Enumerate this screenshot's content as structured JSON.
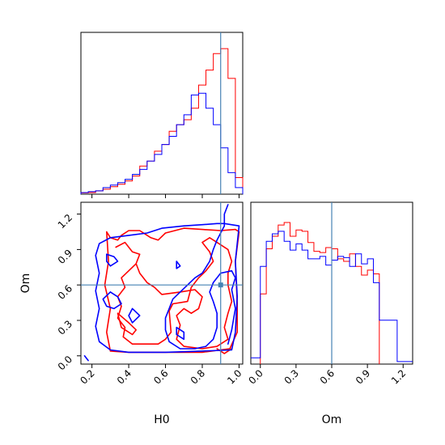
{
  "chart_data": {
    "type": "corner",
    "parameters": [
      "H0",
      "Om"
    ],
    "colors": {
      "series_a": "#ff0000",
      "series_b": "#0000ff",
      "truth": "#4682b4"
    },
    "truth": {
      "H0": 0.9,
      "Om": 0.6
    },
    "panels": [
      {
        "id": "hist-H0",
        "type": "step-histogram",
        "x": "H0",
        "xlim": [
          0.14,
          1.02
        ],
        "bin_edges": [
          0.14,
          0.18,
          0.22,
          0.26,
          0.3,
          0.34,
          0.38,
          0.42,
          0.46,
          0.5,
          0.54,
          0.58,
          0.62,
          0.66,
          0.7,
          0.74,
          0.78,
          0.82,
          0.86,
          0.9,
          0.94,
          0.98,
          1.02
        ],
        "series": [
          {
            "color": "red",
            "values": [
              0.008,
              0.01,
              0.02,
              0.03,
              0.045,
              0.06,
              0.08,
              0.11,
              0.17,
              0.2,
              0.26,
              0.3,
              0.38,
              0.42,
              0.45,
              0.52,
              0.66,
              0.75,
              0.85,
              0.88,
              0.7,
              0.1
            ]
          },
          {
            "color": "blue",
            "values": [
              0.01,
              0.015,
              0.02,
              0.04,
              0.055,
              0.07,
              0.09,
              0.12,
              0.15,
              0.2,
              0.24,
              0.3,
              0.35,
              0.42,
              0.48,
              0.6,
              0.61,
              0.52,
              0.42,
              0.28,
              0.13,
              0.04
            ]
          }
        ]
      },
      {
        "id": "contour-H0-Om",
        "type": "contour",
        "x": "H0",
        "y": "Om",
        "xlim": [
          0.14,
          1.02
        ],
        "ylim": [
          -0.07,
          1.3
        ],
        "series": [
          {
            "color": "red",
            "contours": [
              [
                [
                  0.28,
                  1.05
                ],
                [
                  0.3,
                  1.0
                ],
                [
                  0.34,
                  0.98
                ],
                [
                  0.36,
                  1.02
                ],
                [
                  0.4,
                  1.06
                ],
                [
                  0.46,
                  1.06
                ],
                [
                  0.52,
                  1.0
                ],
                [
                  0.56,
                  0.98
                ],
                [
                  0.6,
                  1.04
                ],
                [
                  0.7,
                  1.08
                ],
                [
                  0.8,
                  1.07
                ],
                [
                  0.9,
                  1.06
                ],
                [
                  0.98,
                  1.07
                ],
                [
                  1.0,
                  1.05
                ],
                [
                  0.98,
                  0.8
                ],
                [
                  0.99,
                  0.45
                ],
                [
                  0.99,
                  0.2
                ],
                [
                  0.95,
                  0.06
                ],
                [
                  0.8,
                  0.03
                ],
                [
                  0.6,
                  0.03
                ],
                [
                  0.4,
                  0.03
                ],
                [
                  0.3,
                  0.04
                ],
                [
                  0.28,
                  0.2
                ],
                [
                  0.3,
                  0.4
                ],
                [
                  0.27,
                  0.6
                ],
                [
                  0.29,
                  0.8
                ],
                [
                  0.28,
                  1.05
                ]
              ],
              [
                [
                  0.33,
                  0.92
                ],
                [
                  0.38,
                  0.96
                ],
                [
                  0.42,
                  0.88
                ],
                [
                  0.46,
                  0.86
                ],
                [
                  0.44,
                  0.78
                ],
                [
                  0.4,
                  0.72
                ],
                [
                  0.36,
                  0.66
                ],
                [
                  0.38,
                  0.58
                ],
                [
                  0.34,
                  0.5
                ],
                [
                  0.36,
                  0.42
                ],
                [
                  0.34,
                  0.32
                ],
                [
                  0.38,
                  0.24
                ],
                [
                  0.37,
                  0.16
                ],
                [
                  0.42,
                  0.1
                ],
                [
                  0.5,
                  0.1
                ],
                [
                  0.56,
                  0.1
                ],
                [
                  0.6,
                  0.14
                ],
                [
                  0.63,
                  0.2
                ],
                [
                  0.62,
                  0.38
                ],
                [
                  0.64,
                  0.44
                ],
                [
                  0.72,
                  0.46
                ],
                [
                  0.74,
                  0.58
                ],
                [
                  0.78,
                  0.66
                ],
                [
                  0.82,
                  0.72
                ],
                [
                  0.86,
                  0.8
                ],
                [
                  0.84,
                  0.88
                ],
                [
                  0.8,
                  0.96
                ],
                [
                  0.84,
                  1.0
                ],
                [
                  0.88,
                  0.96
                ],
                [
                  0.94,
                  0.9
                ],
                [
                  0.96,
                  0.8
                ],
                [
                  0.94,
                  0.7
                ],
                [
                  0.94,
                  0.6
                ],
                [
                  0.96,
                  0.46
                ],
                [
                  0.94,
                  0.36
                ],
                [
                  0.92,
                  0.24
                ],
                [
                  0.94,
                  0.14
                ],
                [
                  0.88,
                  0.08
                ],
                [
                  0.8,
                  0.06
                ],
                [
                  0.7,
                  0.08
                ],
                [
                  0.66,
                  0.14
                ],
                [
                  0.68,
                  0.26
                ],
                [
                  0.66,
                  0.34
                ],
                [
                  0.7,
                  0.4
                ],
                [
                  0.74,
                  0.36
                ],
                [
                  0.78,
                  0.4
                ],
                [
                  0.8,
                  0.5
                ],
                [
                  0.76,
                  0.56
                ],
                [
                  0.68,
                  0.54
                ],
                [
                  0.58,
                  0.52
                ],
                [
                  0.54,
                  0.58
                ],
                [
                  0.5,
                  0.62
                ],
                [
                  0.46,
                  0.7
                ],
                [
                  0.44,
                  0.78
                ]
              ],
              [
                [
                  0.34,
                  0.36
                ],
                [
                  0.4,
                  0.28
                ],
                [
                  0.44,
                  0.22
                ],
                [
                  0.42,
                  0.18
                ],
                [
                  0.36,
                  0.24
                ],
                [
                  0.34,
                  0.36
                ]
              ],
              [
                [
                  0.88,
                  0.06
                ],
                [
                  0.92,
                  0.02
                ],
                [
                  0.96,
                  0.06
                ]
              ]
            ]
          },
          {
            "color": "blue",
            "contours": [
              [
                [
                  0.16,
                  0.0
                ],
                [
                  0.18,
                  -0.04
                ]
              ],
              [
                [
                  0.24,
                  0.95
                ],
                [
                  0.3,
                  1.0
                ],
                [
                  0.4,
                  1.02
                ],
                [
                  0.5,
                  1.04
                ],
                [
                  0.58,
                  1.08
                ],
                [
                  0.7,
                  1.1
                ],
                [
                  0.8,
                  1.11
                ],
                [
                  0.88,
                  1.12
                ],
                [
                  0.92,
                  1.12
                ],
                [
                  1.0,
                  1.1
                ],
                [
                  0.98,
                  0.8
                ],
                [
                  0.99,
                  0.5
                ],
                [
                  0.98,
                  0.2
                ],
                [
                  0.96,
                  0.05
                ],
                [
                  0.8,
                  0.04
                ],
                [
                  0.6,
                  0.03
                ],
                [
                  0.4,
                  0.03
                ],
                [
                  0.3,
                  0.05
                ],
                [
                  0.24,
                  0.12
                ],
                [
                  0.22,
                  0.25
                ],
                [
                  0.24,
                  0.4
                ],
                [
                  0.22,
                  0.55
                ],
                [
                  0.24,
                  0.7
                ],
                [
                  0.22,
                  0.85
                ],
                [
                  0.24,
                  0.95
                ]
              ],
              [
                [
                  0.28,
                  0.86
                ],
                [
                  0.32,
                  0.84
                ],
                [
                  0.34,
                  0.8
                ],
                [
                  0.3,
                  0.76
                ],
                [
                  0.28,
                  0.8
                ],
                [
                  0.28,
                  0.86
                ]
              ],
              [
                [
                  0.3,
                  0.54
                ],
                [
                  0.34,
                  0.5
                ],
                [
                  0.36,
                  0.44
                ],
                [
                  0.32,
                  0.4
                ],
                [
                  0.28,
                  0.42
                ],
                [
                  0.26,
                  0.48
                ],
                [
                  0.3,
                  0.54
                ]
              ],
              [
                [
                  0.42,
                  0.4
                ],
                [
                  0.46,
                  0.34
                ],
                [
                  0.42,
                  0.28
                ],
                [
                  0.4,
                  0.34
                ],
                [
                  0.42,
                  0.4
                ]
              ],
              [
                [
                  0.72,
                  0.6
                ],
                [
                  0.76,
                  0.66
                ],
                [
                  0.8,
                  0.7
                ],
                [
                  0.84,
                  0.8
                ],
                [
                  0.86,
                  0.9
                ],
                [
                  0.88,
                  0.98
                ],
                [
                  0.9,
                  1.04
                ],
                [
                  0.92,
                  1.1
                ],
                [
                  0.92,
                  1.2
                ],
                [
                  0.94,
                  1.28
                ]
              ],
              [
                [
                  0.72,
                  0.6
                ],
                [
                  0.68,
                  0.54
                ],
                [
                  0.64,
                  0.48
                ],
                [
                  0.62,
                  0.4
                ],
                [
                  0.6,
                  0.32
                ],
                [
                  0.6,
                  0.22
                ],
                [
                  0.62,
                  0.12
                ],
                [
                  0.68,
                  0.06
                ],
                [
                  0.76,
                  0.06
                ],
                [
                  0.82,
                  0.08
                ],
                [
                  0.86,
                  0.14
                ],
                [
                  0.88,
                  0.24
                ],
                [
                  0.88,
                  0.36
                ],
                [
                  0.86,
                  0.46
                ],
                [
                  0.84,
                  0.54
                ],
                [
                  0.86,
                  0.62
                ],
                [
                  0.9,
                  0.7
                ],
                [
                  0.96,
                  0.72
                ],
                [
                  0.98,
                  0.66
                ],
                [
                  0.96,
                  0.56
                ],
                [
                  0.98,
                  0.4
                ],
                [
                  0.96,
                  0.22
                ],
                [
                  0.94,
                  0.1
                ]
              ],
              [
                [
                  0.66,
                  0.24
                ],
                [
                  0.7,
                  0.2
                ],
                [
                  0.7,
                  0.14
                ],
                [
                  0.66,
                  0.18
                ],
                [
                  0.66,
                  0.24
                ]
              ],
              [
                [
                  0.66,
                  0.8
                ],
                [
                  0.68,
                  0.76
                ],
                [
                  0.66,
                  0.74
                ],
                [
                  0.66,
                  0.8
                ]
              ]
            ]
          }
        ]
      },
      {
        "id": "hist-Om",
        "type": "step-histogram",
        "x": "Om",
        "xlim": [
          -0.08,
          1.28
        ],
        "bin_edges": [
          0.0,
          0.05,
          0.1,
          0.15,
          0.2,
          0.25,
          0.3,
          0.35,
          0.4,
          0.45,
          0.5,
          0.55,
          0.6,
          0.65,
          0.7,
          0.75,
          0.8,
          0.85,
          0.9,
          0.95,
          1.0
        ],
        "series": [
          {
            "color": "red",
            "values": [
              0.56,
              0.92,
              1.02,
              1.11,
              1.13,
              1.02,
              1.07,
              1.06,
              0.97,
              0.9,
              0.89,
              0.93,
              0.92,
              0.84,
              0.82,
              0.88,
              0.78,
              0.71,
              0.75,
              0.72
            ]
          },
          {
            "color": "blue",
            "values": [
              0.78,
              0.98,
              1.04,
              1.06,
              0.98,
              0.91,
              0.96,
              0.91,
              0.84,
              0.84,
              0.86,
              0.79,
              0.83,
              0.86,
              0.85,
              0.78,
              0.88,
              0.8,
              0.84,
              0.65
            ]
          }
        ],
        "blue_extension": {
          "bins": [
            [
              -0.08,
              0.0,
              0.05
            ],
            [
              1.0,
              1.15,
              0.35
            ],
            [
              1.15,
              1.28,
              0.02
            ]
          ]
        }
      }
    ],
    "ticks": {
      "H0": [
        "0.2",
        "0.4",
        "0.6",
        "0.8",
        "1.0"
      ],
      "Om_y": [
        "0.0",
        "0.3",
        "0.6",
        "0.9",
        "1.2"
      ],
      "Om_x": [
        "0.0",
        "0.3",
        "0.6",
        "0.9",
        "1.2"
      ]
    },
    "labels": {
      "x_left": "H0",
      "x_right": "Om",
      "y_left": "Om"
    }
  }
}
